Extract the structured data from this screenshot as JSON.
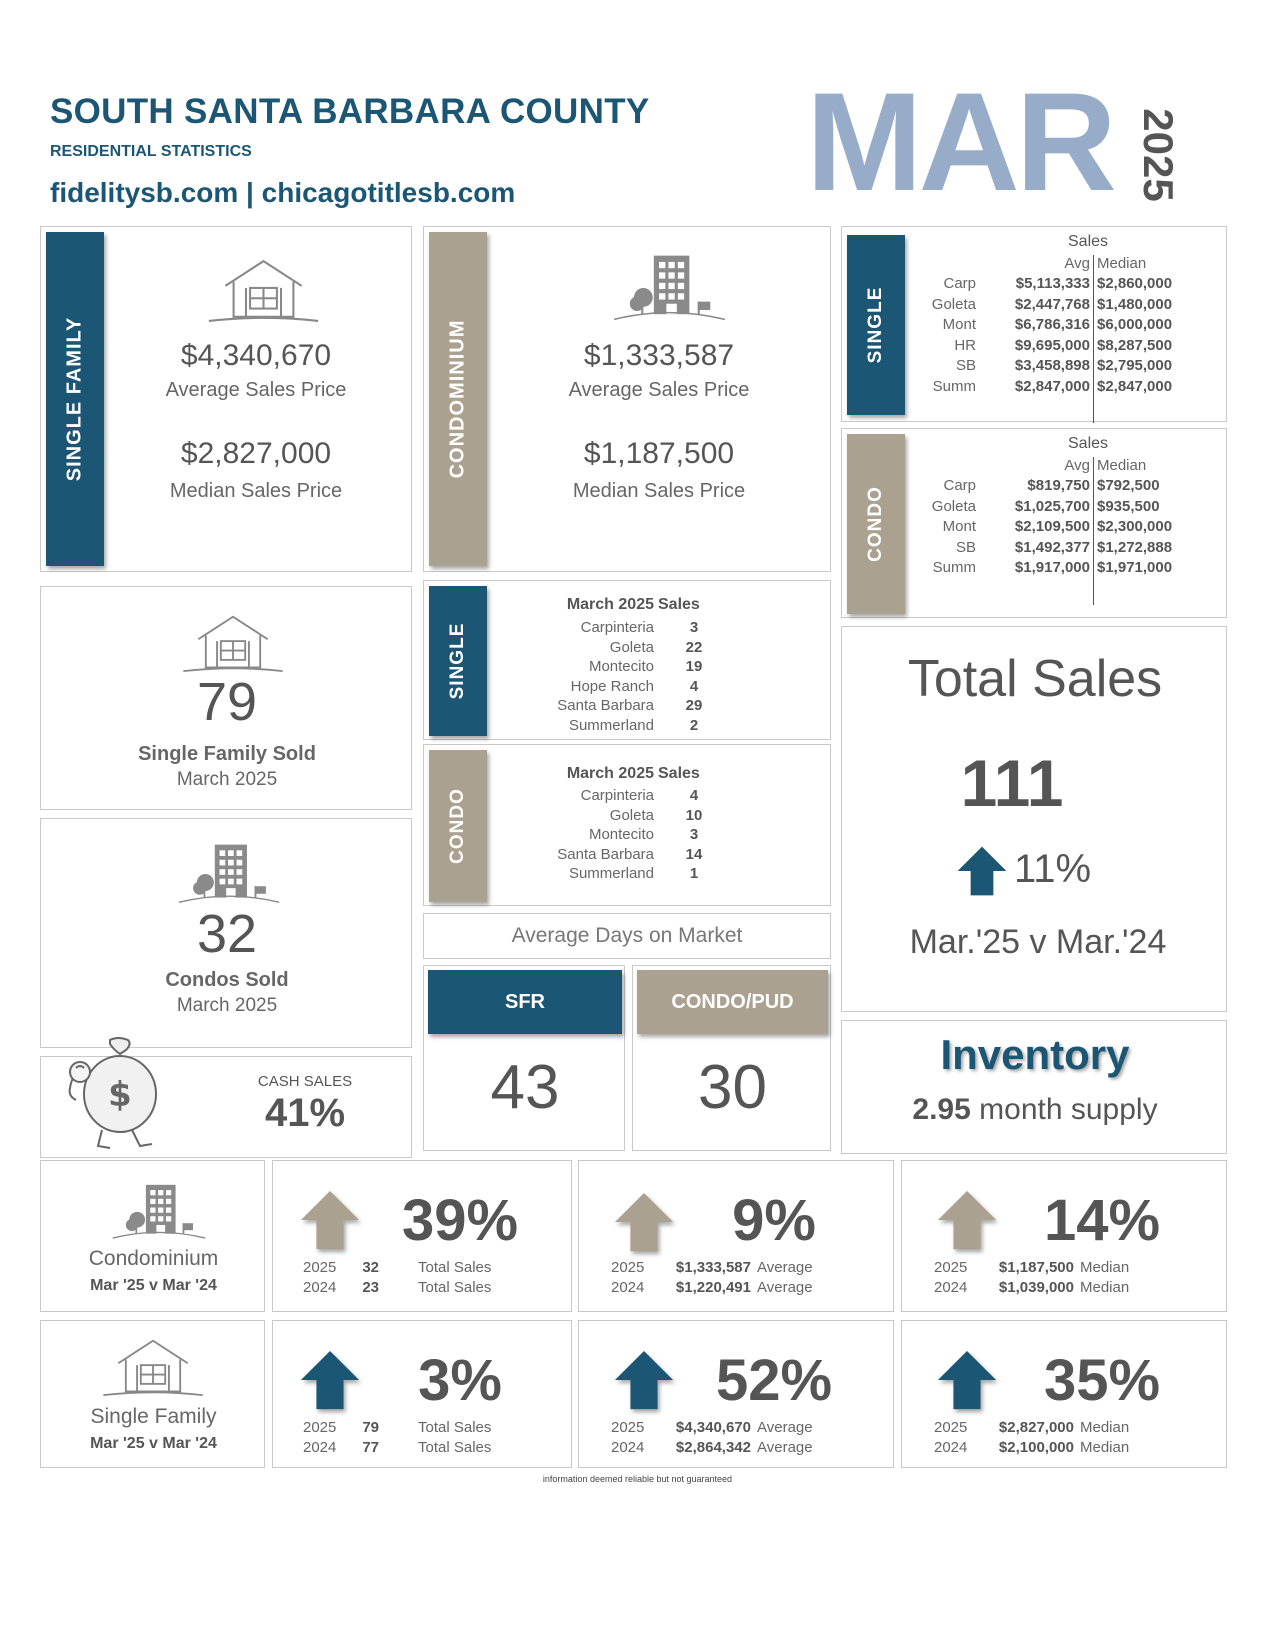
{
  "header": {
    "title": "SOUTH SANTA BARBARA COUNTY",
    "subtitle": "RESIDENTIAL STATISTICS",
    "links": "fidelitysb.com | chicagotitlesb.com",
    "month": "MAR",
    "year": "2025"
  },
  "colors": {
    "blue": "#1c5675",
    "taupe": "#aba190",
    "month_blue": "#96acc9"
  },
  "single_family": {
    "label": "SINGLE FAMILY",
    "icon": "house-icon",
    "avg_price": "$4,340,670",
    "avg_label": "Average Sales Price",
    "median_price": "$2,827,000",
    "median_label": "Median Sales Price"
  },
  "condominium": {
    "label": "CONDOMINIUM",
    "icon": "building-icon",
    "avg_price": "$1,333,587",
    "avg_label": "Average Sales Price",
    "median_price": "$1,187,500",
    "median_label": "Median Sales Price"
  },
  "single_table": {
    "label": "SINGLE",
    "heading": "Sales",
    "col_avg": "Avg",
    "col_median": "Median",
    "rows": [
      {
        "area": "Carp",
        "avg": "$5,113,333",
        "median": "$2,860,000"
      },
      {
        "area": "Goleta",
        "avg": "$2,447,768",
        "median": "$1,480,000"
      },
      {
        "area": "Mont",
        "avg": "$6,786,316",
        "median": "$6,000,000"
      },
      {
        "area": "HR",
        "avg": "$9,695,000",
        "median": "$8,287,500"
      },
      {
        "area": "SB",
        "avg": "$3,458,898",
        "median": "$2,795,000"
      },
      {
        "area": "Summ",
        "avg": "$2,847,000",
        "median": "$2,847,000"
      }
    ]
  },
  "condo_table": {
    "label": "CONDO",
    "heading": "Sales",
    "col_avg": "Avg",
    "col_median": "Median",
    "rows": [
      {
        "area": "Carp",
        "avg": "$819,750",
        "median": "$792,500"
      },
      {
        "area": "Goleta",
        "avg": "$1,025,700",
        "median": "$935,500"
      },
      {
        "area": "Mont",
        "avg": "$2,109,500",
        "median": "$2,300,000"
      },
      {
        "area": "SB",
        "avg": "$1,492,377",
        "median": "$1,272,888"
      },
      {
        "area": "Summ",
        "avg": "$1,917,000",
        "median": "$1,971,000"
      }
    ]
  },
  "sf_sold": {
    "count": "79",
    "label": "Single Family Sold",
    "period": "March 2025"
  },
  "condo_sold": {
    "count": "32",
    "label": "Condos Sold",
    "period": "March 2025"
  },
  "cash_sales": {
    "label": "CASH SALES",
    "value": "41%"
  },
  "single_sales": {
    "label": "SINGLE",
    "heading_period": "March 2025",
    "heading": "Sales",
    "rows": [
      {
        "area": "Carpinteria",
        "count": "3"
      },
      {
        "area": "Goleta",
        "count": "22"
      },
      {
        "area": "Montecito",
        "count": "19"
      },
      {
        "area": "Hope Ranch",
        "count": "4"
      },
      {
        "area": "Santa Barbara",
        "count": "29"
      },
      {
        "area": "Summerland",
        "count": "2"
      }
    ]
  },
  "condo_sales": {
    "label": "CONDO",
    "heading_period": "March 2025",
    "heading": "Sales",
    "rows": [
      {
        "area": "Carpinteria",
        "count": "4"
      },
      {
        "area": "Goleta",
        "count": "10"
      },
      {
        "area": "Montecito",
        "count": "3"
      },
      {
        "area": "Santa Barbara",
        "count": "14"
      },
      {
        "area": "Summerland",
        "count": "1"
      }
    ]
  },
  "days_on_market": {
    "title": "Average Days on Market",
    "sfr_label": "SFR",
    "sfr_value": "43",
    "condo_label": "CONDO/PUD",
    "condo_value": "30"
  },
  "total_sales": {
    "title": "Total Sales",
    "value": "111",
    "change": "11%",
    "comparison": "Mar.'25 v Mar.'24"
  },
  "inventory": {
    "title": "Inventory",
    "value": "2.95",
    "unit": "month supply"
  },
  "condo_compare": {
    "label": "Condominium",
    "period": "Mar '25 v Mar '24",
    "cards": [
      {
        "pct": "39%",
        "y1": "2025",
        "v1": "32",
        "t1": "Total Sales",
        "y2": "2024",
        "v2": "23",
        "t2": "Total Sales"
      },
      {
        "pct": "9%",
        "y1": "2025",
        "v1": "$1,333,587",
        "t1": "Average",
        "y2": "2024",
        "v2": "$1,220,491",
        "t2": "Average"
      },
      {
        "pct": "14%",
        "y1": "2025",
        "v1": "$1,187,500",
        "t1": "Median",
        "y2": "2024",
        "v2": "$1,039,000",
        "t2": "Median"
      }
    ]
  },
  "sf_compare": {
    "label": "Single Family",
    "period": "Mar '25 v Mar '24",
    "cards": [
      {
        "pct": "3%",
        "y1": "2025",
        "v1": "79",
        "t1": "Total Sales",
        "y2": "2024",
        "v2": "77",
        "t2": "Total Sales"
      },
      {
        "pct": "52%",
        "y1": "2025",
        "v1": "$4,340,670",
        "t1": "Average",
        "y2": "2024",
        "v2": "$2,864,342",
        "t2": "Average"
      },
      {
        "pct": "35%",
        "y1": "2025",
        "v1": "$2,827,000",
        "t1": "Median",
        "y2": "2024",
        "v2": "$2,100,000",
        "t2": "Median"
      }
    ]
  },
  "footer": {
    "disclaimer": "information deemed reliable but not guaranteed"
  }
}
